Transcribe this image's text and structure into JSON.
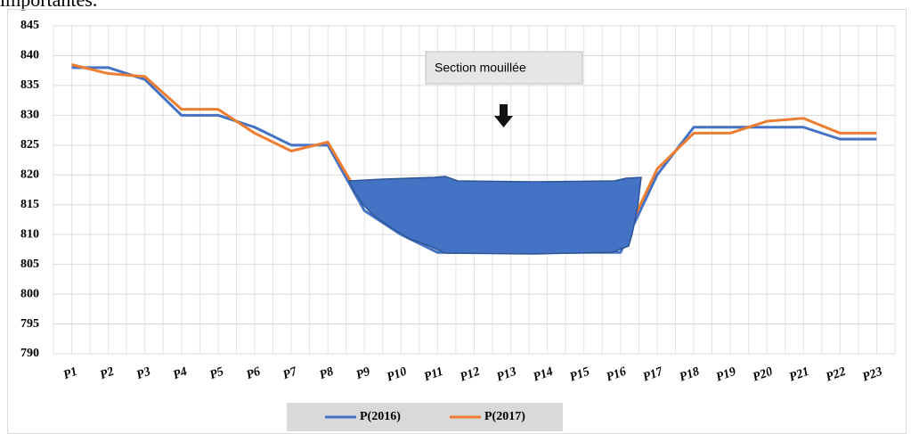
{
  "page_text": "importantes.",
  "chart_data": {
    "type": "line",
    "annotation": "Section mouillée",
    "categories": [
      "P1",
      "P2",
      "P3",
      "P4",
      "P5",
      "P6",
      "P7",
      "P8",
      "P9",
      "P10",
      "P11",
      "P12",
      "P13",
      "P14",
      "P15",
      "P16",
      "P17",
      "P18",
      "P19",
      "P20",
      "P21",
      "P22",
      "P23"
    ],
    "series": [
      {
        "name": "P(2016)",
        "color": "#4472c4",
        "values": [
          838,
          838,
          836,
          830,
          830,
          828,
          825,
          825,
          814,
          810,
          807,
          807,
          807,
          807,
          807,
          807,
          820,
          828,
          828,
          828,
          828,
          826,
          826
        ]
      },
      {
        "name": "P(2017)",
        "color": "#ed7d31",
        "values": [
          838.5,
          837,
          836.5,
          831,
          831,
          827,
          824,
          825.5,
          815,
          811,
          808,
          807.5,
          807.5,
          807.5,
          807.5,
          808,
          821,
          827,
          827,
          829,
          829.5,
          827,
          827
        ]
      }
    ],
    "ylim": [
      790,
      845
    ],
    "yticks": [
      790,
      795,
      800,
      805,
      810,
      815,
      820,
      825,
      830,
      835,
      840,
      845
    ],
    "grid": true,
    "legend": "bottom"
  }
}
